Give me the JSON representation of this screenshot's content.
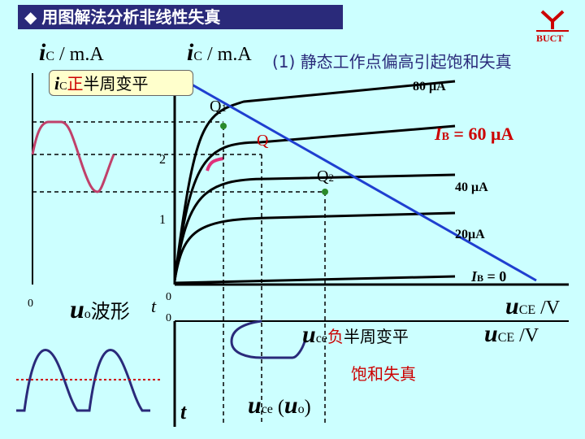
{
  "title": "用图解法分析非线性失真",
  "logo_text": "BUCT",
  "axis": {
    "ic_main": "i",
    "ic_sub": "C",
    "ic_unit": " / m.A",
    "ic_left_unit": " / m.A",
    "uce_main": "u",
    "uce_sub": "CE",
    "uce_unit": " /V",
    "zero": "0",
    "t": "t"
  },
  "subtitle": "(1) 静态工作点偏高引起饱和失真",
  "callout": {
    "i": "i",
    "sub": "C",
    "red": "正",
    "rest": "半周变平"
  },
  "ticks": {
    "y2": "2",
    "y1": "1"
  },
  "curves": {
    "c80": "80 μA",
    "c60": "I",
    "c60_sub": "B",
    "c60_val": " = 60 μA",
    "c40": "40 μA",
    "c20": "20μA",
    "c0": "I",
    "c0_sub": "B",
    "c0_val": " = 0"
  },
  "points": {
    "q1": "Q",
    "q1_sub": "1",
    "q": "Q",
    "q2": "Q",
    "q2_sub": "2"
  },
  "uo_label": {
    "u": "u",
    "sub": "o",
    "rest": "波形"
  },
  "uce_note": {
    "u": "u",
    "sub": "ce",
    "red": "负",
    "rest": "半周变平"
  },
  "saturation": "饱和失真",
  "uce_bottom": {
    "u": "u",
    "sub": "ce",
    "mid": " (",
    "u2": "u",
    "sub2": "o",
    "end": ")"
  },
  "colors": {
    "load_line": "#1f3fd0",
    "distorted": "#e0307a",
    "sat_dash": "#cc0000",
    "uo_wave": "#2a2a7a",
    "ic_wave": "#c0406a"
  }
}
